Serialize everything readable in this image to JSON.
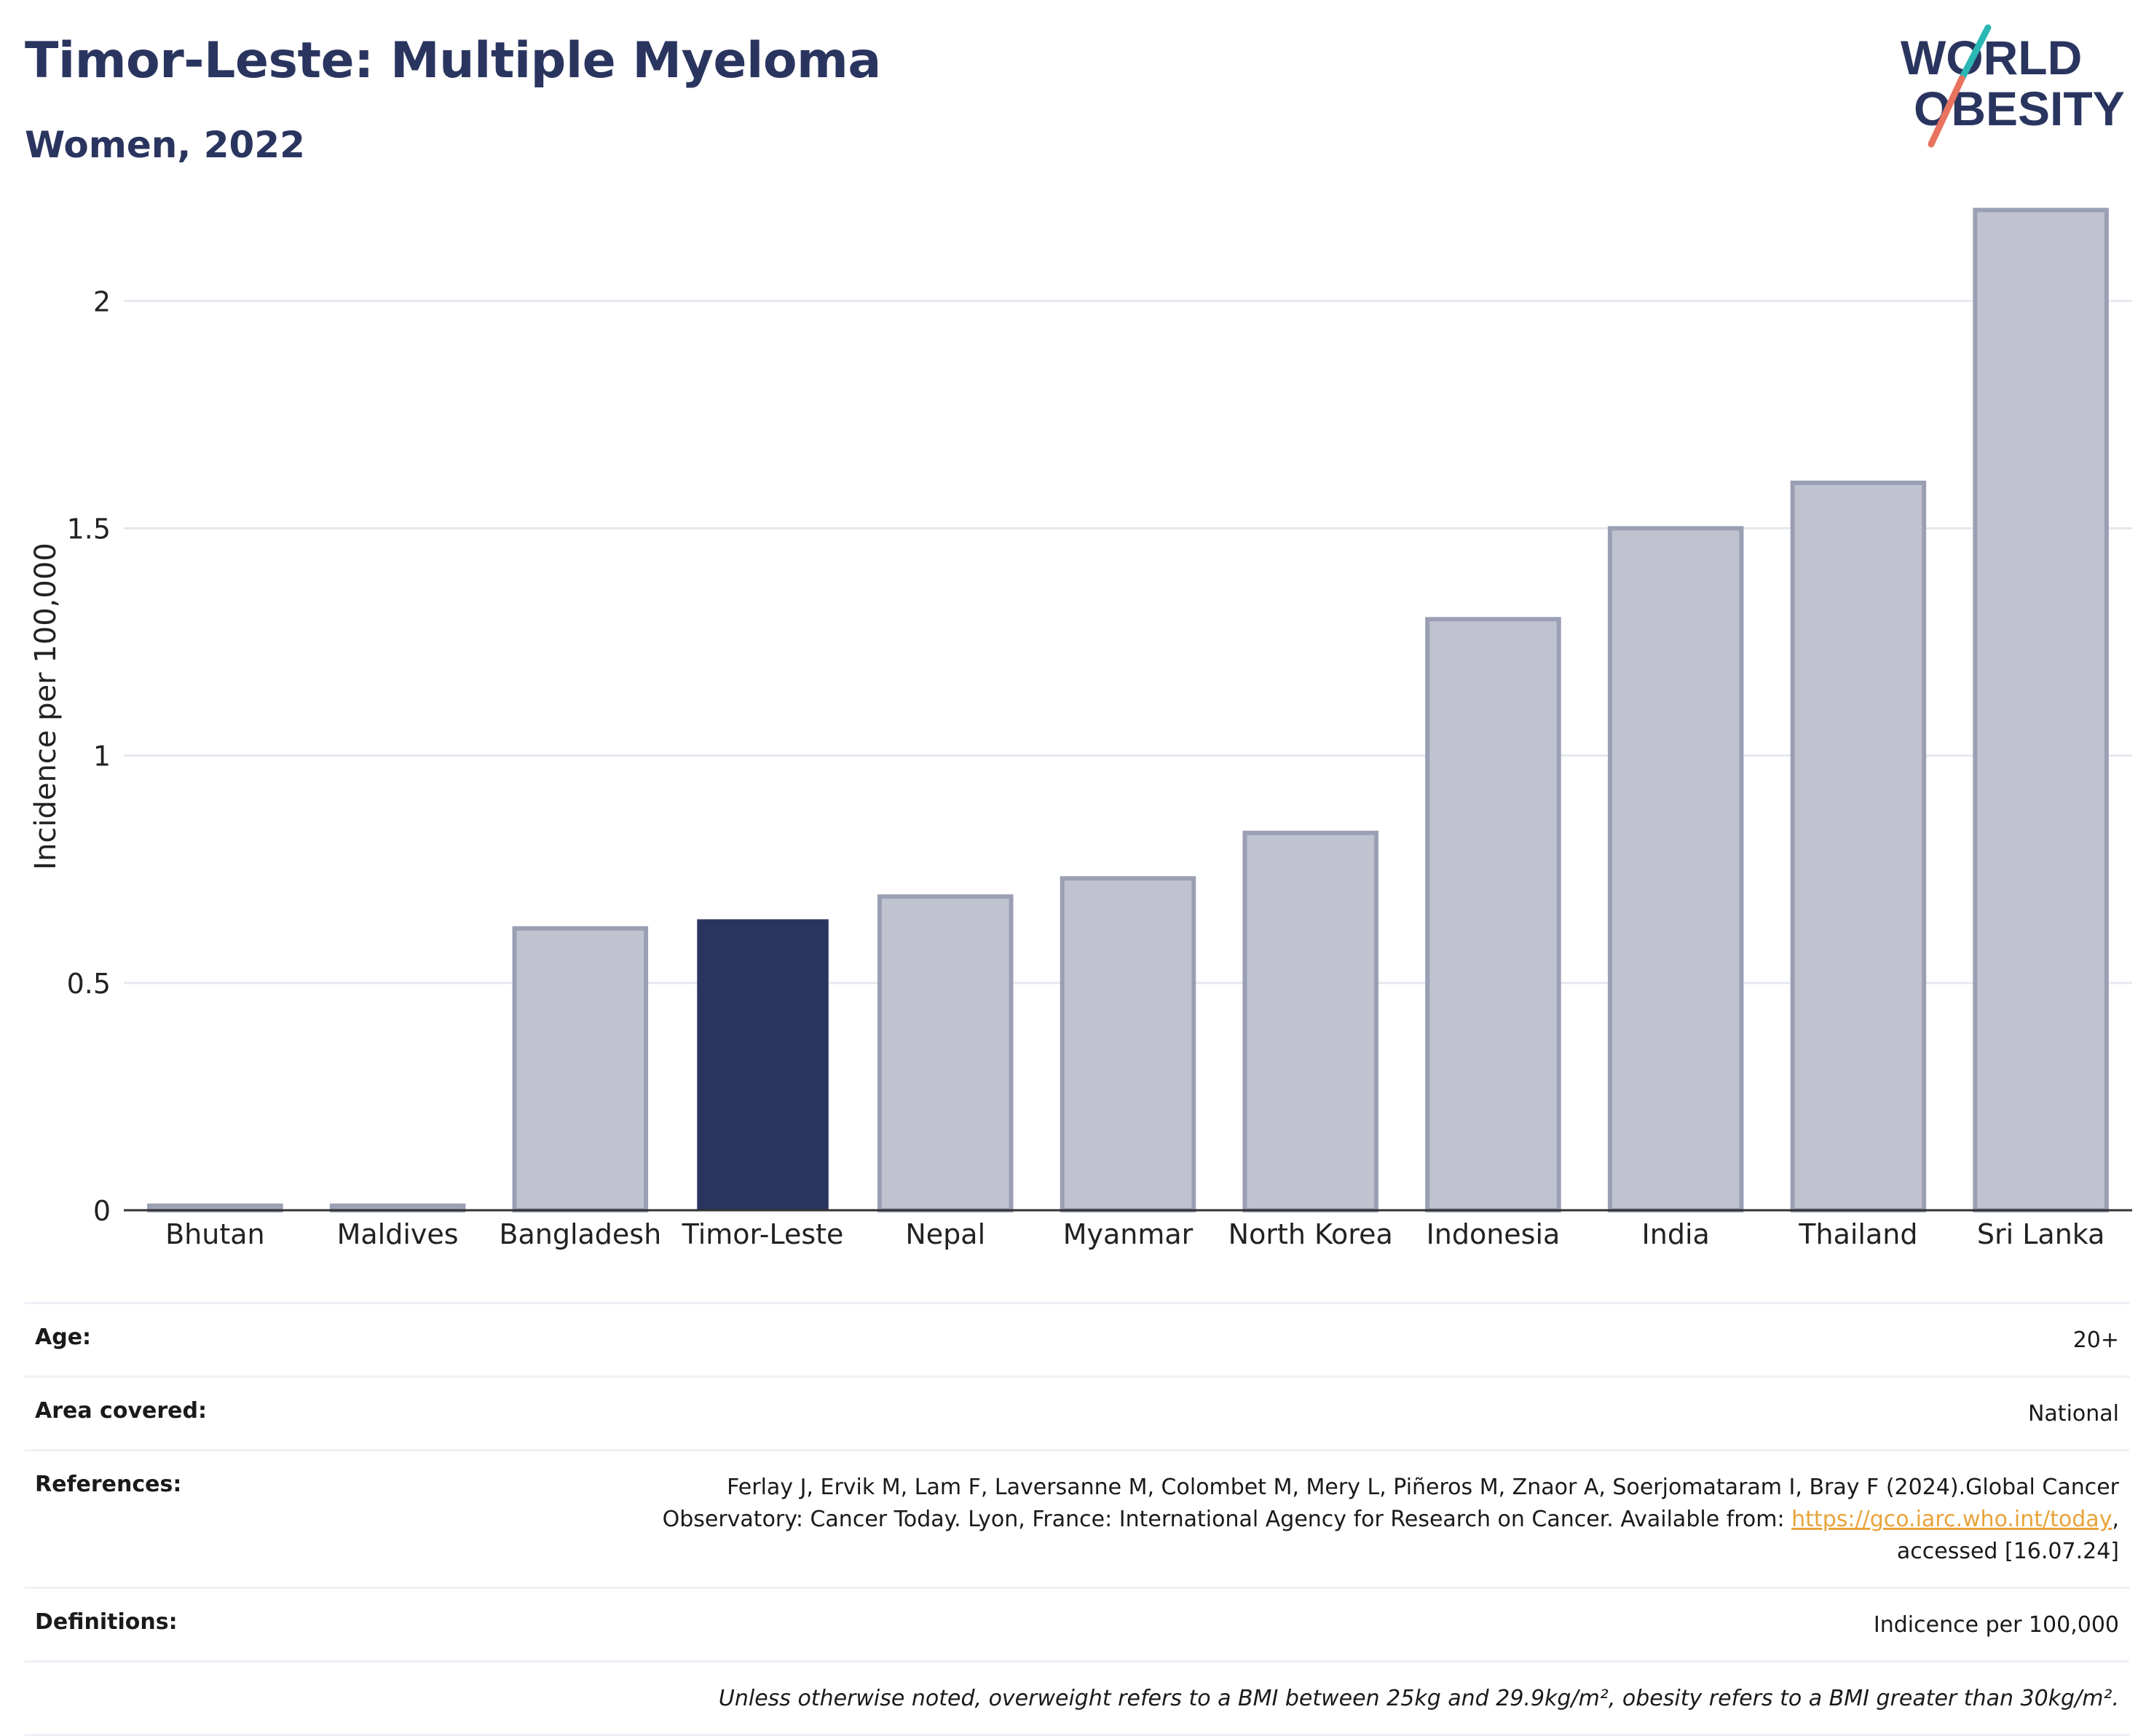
{
  "header": {
    "title": "Timor-Leste: Multiple Myeloma",
    "subtitle": "Women, 2022"
  },
  "logo": {
    "line1": "WORLD",
    "line2": "OBESITY",
    "icon": "slash-mark-icon"
  },
  "colors": {
    "highlight": "#2a355f",
    "bar_fill": "#c0c3cf",
    "bar_stroke": "#9a9fb4",
    "accent_teal": "#2bb7b3",
    "accent_coral": "#e8735f",
    "link": "#e8a33a"
  },
  "chart_data": {
    "type": "bar",
    "categories": [
      "Bhutan",
      "Maldives",
      "Bangladesh",
      "Timor-Leste",
      "Nepal",
      "Myanmar",
      "North Korea",
      "Indonesia",
      "India",
      "Thailand",
      "Sri Lanka"
    ],
    "values": [
      0.01,
      0.01,
      0.62,
      0.64,
      0.69,
      0.73,
      0.83,
      1.3,
      1.5,
      1.6,
      2.2
    ],
    "highlight": "Timor-Leste",
    "ylabel": "Incidence per 100,000",
    "ylim": [
      0,
      2.3
    ],
    "yticks": [
      0,
      0.5,
      1,
      1.5,
      2
    ],
    "ytick_labels": [
      "0",
      "0.5",
      "1",
      "1.5",
      "2"
    ],
    "grid": true
  },
  "meta": {
    "age_label": "Age:",
    "age_value": "20+",
    "area_label": "Area covered:",
    "area_value": "National",
    "references_label": "References:",
    "references_text_1": "Ferlay J, Ervik M, Lam F, Laversanne M, Colombet M, Mery L, Piñeros M, Znaor A, Soerjomataram I, Bray F (2024).Global Cancer",
    "references_text_2": "Observatory: Cancer Today. Lyon, France: International Agency for Research on Cancer. Available from: ",
    "references_link": "https://gco.iarc.who.int/today",
    "references_text_3": ",",
    "references_text_4": "accessed [16.07.24]",
    "definitions_label": "Definitions:",
    "definitions_value": "Indicence per 100,000",
    "note": "Unless otherwise noted, overweight refers to a BMI between 25kg and 29.9kg/m², obesity refers to a BMI greater than 30kg/m²."
  }
}
